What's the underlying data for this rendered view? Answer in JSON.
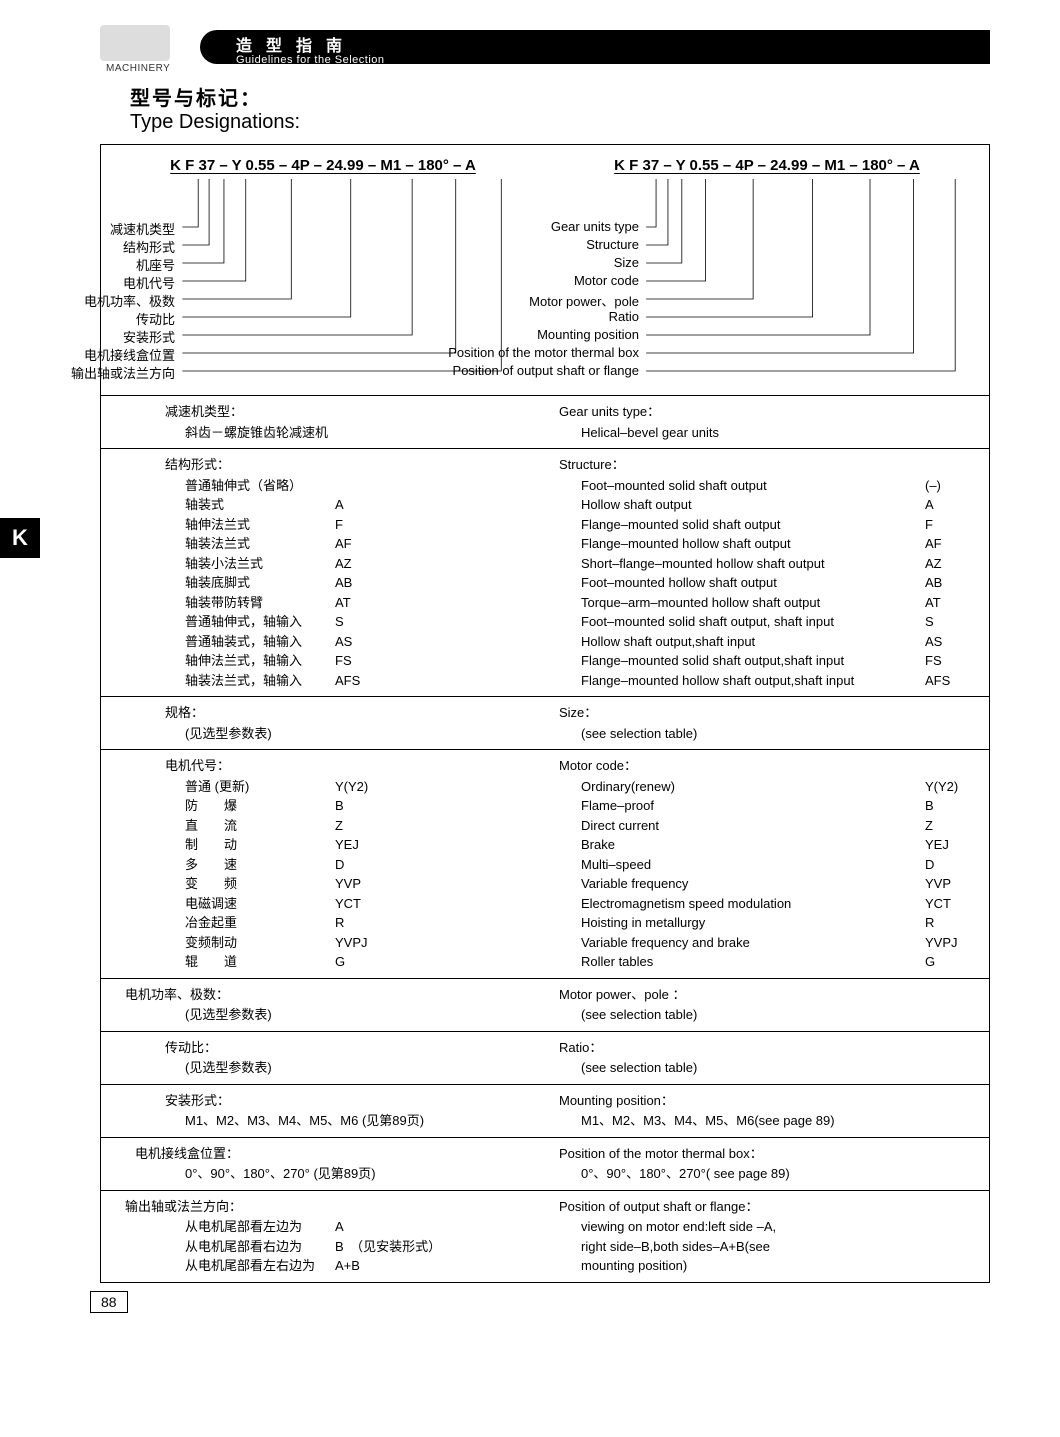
{
  "header": {
    "machinery": "MACHINERY",
    "bar_cn": "造型指南",
    "bar_en": "Guidelines for the Selection"
  },
  "title": {
    "cn": "型号与标记：",
    "en": "Type Designations:"
  },
  "side_tab": "K",
  "page_number": "88",
  "code_string": "K F 37 – Y 0.55 – 4P – 24.99 – M1 – 180° – A",
  "diagram_labels_cn": [
    "减速机类型",
    "结构形式",
    "机座号",
    "电机代号",
    "电机功率、极数",
    "传动比",
    "安装形式",
    "电机接线盒位置",
    "输出轴或法兰方向"
  ],
  "diagram_labels_en": [
    "Gear units type",
    "Structure",
    "Size",
    "Motor code",
    "Motor power、pole",
    "Ratio",
    "Mounting position",
    "Position of the motor thermal box",
    "Position of output shaft or flange"
  ],
  "sec_gear_type": {
    "cn_title": "减速机类型：",
    "cn_val": "斜齿－螺旋锥齿轮减速机",
    "en_title": "Gear units type：",
    "en_val": "Helical–bevel gear units"
  },
  "sec_structure": {
    "cn_title": "结构形式：",
    "en_title": "Structure：",
    "cn_rows": [
      [
        "普通轴伸式（省略）",
        ""
      ],
      [
        "轴装式",
        "A"
      ],
      [
        "轴伸法兰式",
        "F"
      ],
      [
        "轴装法兰式",
        "AF"
      ],
      [
        "轴装小法兰式",
        "AZ"
      ],
      [
        "轴装底脚式",
        "AB"
      ],
      [
        "轴装带防转臂",
        "AT"
      ],
      [
        "普通轴伸式，轴输入",
        "S"
      ],
      [
        "普通轴装式，轴输入",
        "AS"
      ],
      [
        "轴伸法兰式，轴输入",
        "FS"
      ],
      [
        "轴装法兰式，轴输入",
        "AFS"
      ]
    ],
    "en_rows": [
      [
        "Foot–mounted solid shaft output",
        "(–)"
      ],
      [
        "Hollow shaft output",
        "A"
      ],
      [
        "Flange–mounted solid shaft output",
        "F"
      ],
      [
        "Flange–mounted hollow shaft output",
        "AF"
      ],
      [
        "Short–flange–mounted hollow shaft output",
        "AZ"
      ],
      [
        "Foot–mounted hollow shaft output",
        "AB"
      ],
      [
        "Torque–arm–mounted hollow shaft output",
        "AT"
      ],
      [
        "Foot–mounted solid shaft output, shaft input",
        "S"
      ],
      [
        "Hollow shaft output,shaft input",
        "AS"
      ],
      [
        "Flange–mounted solid shaft output,shaft input",
        "FS"
      ],
      [
        "Flange–mounted hollow shaft output,shaft input",
        "AFS"
      ]
    ]
  },
  "sec_size": {
    "cn_title": "规格：",
    "cn_val": "(见选型参数表)",
    "en_title": "Size：",
    "en_val": "(see selection table)"
  },
  "sec_motor": {
    "cn_title": "电机代号：",
    "en_title": "Motor code：",
    "cn_rows": [
      [
        "普通 (更新)",
        "Y(Y2)"
      ],
      [
        "防　　爆",
        "B"
      ],
      [
        "直　　流",
        "Z"
      ],
      [
        "制　　动",
        "YEJ"
      ],
      [
        "多　　速",
        "D"
      ],
      [
        "变　　频",
        "YVP"
      ],
      [
        "电磁调速",
        "YCT"
      ],
      [
        "冶金起重",
        "R"
      ],
      [
        "变频制动",
        "YVPJ"
      ],
      [
        "辊　　道",
        "G"
      ]
    ],
    "en_rows": [
      [
        "Ordinary(renew)",
        "Y(Y2)"
      ],
      [
        "Flame–proof",
        "B"
      ],
      [
        "Direct current",
        "Z"
      ],
      [
        "Brake",
        "YEJ"
      ],
      [
        "Multi–speed",
        "D"
      ],
      [
        "Variable frequency",
        "YVP"
      ],
      [
        "Electromagnetism speed modulation",
        "YCT"
      ],
      [
        "Hoisting in metallurgy",
        "R"
      ],
      [
        "Variable frequency and brake",
        "YVPJ"
      ],
      [
        "Roller tables",
        "G"
      ]
    ]
  },
  "sec_power": {
    "cn_title": "电机功率、极数：",
    "cn_val": "(见选型参数表)",
    "en_title": "Motor power、pole ：",
    "en_val": "(see selection table)"
  },
  "sec_ratio": {
    "cn_title": "传动比：",
    "cn_val": "(见选型参数表)",
    "en_title": "Ratio：",
    "en_val": "(see selection table)"
  },
  "sec_mount": {
    "cn_title": "安装形式：",
    "cn_val": "M1、M2、M3、M4、M5、M6 (见第89页)",
    "en_title": "Mounting position：",
    "en_val": "M1、M2、M3、M4、M5、M6(see page 89)"
  },
  "sec_box": {
    "cn_title": "电机接线盒位置：",
    "cn_val": "0°、90°、180°、270° (见第89页)",
    "en_title": "Position of the motor thermal box：",
    "en_val": "0°、90°、180°、270°( see page 89)"
  },
  "sec_output": {
    "cn_title": "输出轴或法兰方向：",
    "cn_rows": [
      [
        "从电机尾部看左边为",
        "A"
      ],
      [
        "从电机尾部看右边为",
        "B　（见安装形式）"
      ],
      [
        "从电机尾部看左右边为",
        "A+B"
      ]
    ],
    "en_title": "Position of output shaft or flange：",
    "en_lines": [
      "viewing on motor end:left side –A,",
      "right side–B,both sides–A+B(see",
      "mounting position)"
    ]
  }
}
